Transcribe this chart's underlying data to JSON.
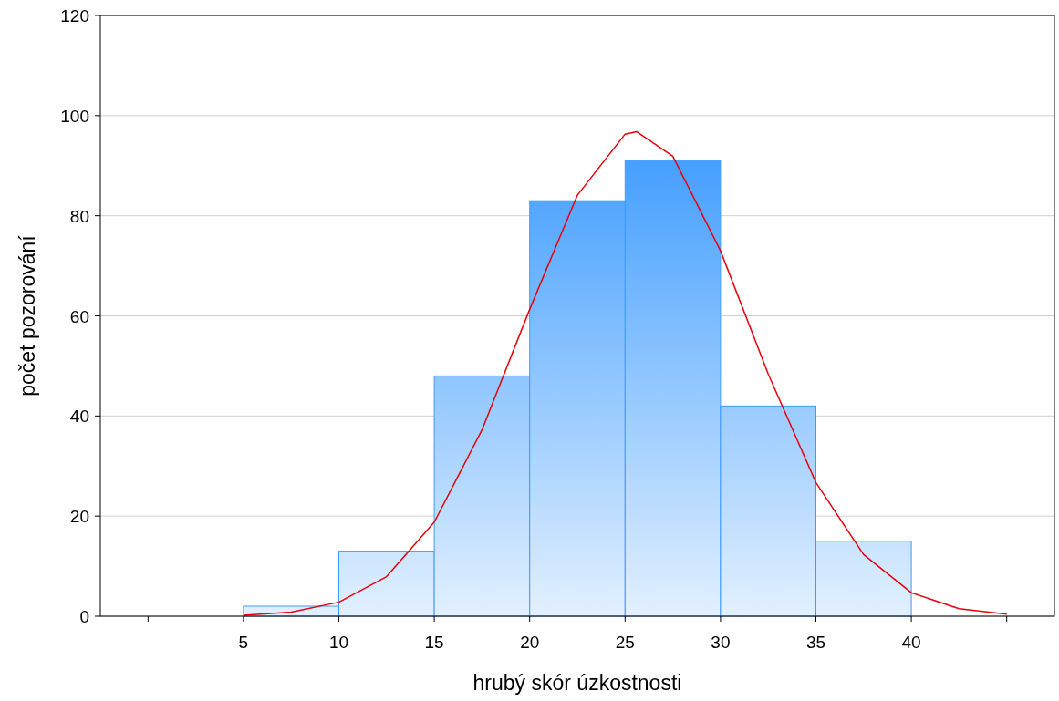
{
  "chart_data": {
    "type": "histogram",
    "xlabel": "hrubý skór úzkostnosti",
    "ylabel": "počet pozorování",
    "bins": [
      5,
      10,
      15,
      20,
      25,
      30,
      35,
      40
    ],
    "values": [
      2,
      13,
      48,
      83,
      91,
      42,
      15
    ],
    "color": "#3d9bff",
    "series": [
      {
        "type": "line",
        "color": "#e8000b",
        "x": [
          5,
          7.5,
          10,
          12.5,
          15,
          17.5,
          20,
          22.5,
          25,
          25.6,
          27.5,
          30,
          32.5,
          35,
          37.5,
          40,
          42.5,
          45
        ],
        "values": [
          0.2,
          0.8,
          2.8,
          7.9,
          18.8,
          37.2,
          61.3,
          84.1,
          96.3,
          96.8,
          91.9,
          73,
          48.4,
          26.7,
          12.3,
          4.7,
          1.5,
          0.4
        ]
      }
    ],
    "xlim": [
      -2.5,
      47.5
    ],
    "xticks": [
      {
        "value": 0,
        "label": null
      },
      5,
      10,
      15,
      20,
      25,
      30,
      35,
      40,
      {
        "value": 45,
        "label": null
      }
    ],
    "ylim": [
      0,
      120
    ],
    "yticks": [
      0,
      20,
      40,
      60,
      80,
      100,
      120
    ],
    "grid": "y"
  }
}
